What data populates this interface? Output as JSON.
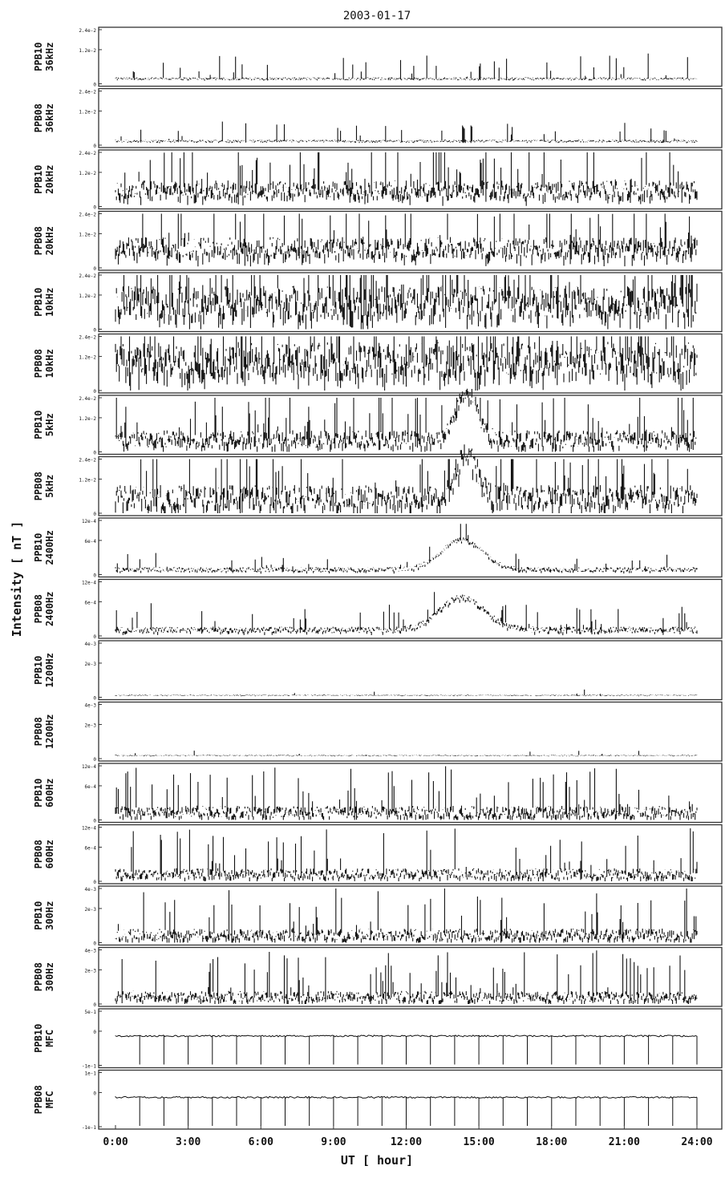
{
  "chart_data": {
    "type": "line",
    "title": "2003-01-17",
    "xlabel": "UT [ hour]",
    "ylabel": "Intensity [ nT ]",
    "x_ticks": [
      "0:00",
      "3:00",
      "6:00",
      "9:00",
      "12:00",
      "15:00",
      "18:00",
      "21:00",
      "24:00"
    ],
    "xlim": [
      0,
      24
    ],
    "grid": false,
    "panels": [
      {
        "station": "PPB10",
        "band": "36kHz",
        "ticks": [
          "2.4e-2",
          "1.2e-2",
          "0"
        ],
        "ylim": [
          0,
          0.024
        ],
        "base": 0.08,
        "noise": 0.04,
        "spike": 0.45,
        "density": 0.06
      },
      {
        "station": "PPB08",
        "band": "36kHz",
        "ticks": [
          "2.4e-2",
          "1.2e-2",
          "0"
        ],
        "ylim": [
          0,
          0.024
        ],
        "base": 0.06,
        "noise": 0.04,
        "spike": 0.35,
        "density": 0.06
      },
      {
        "station": "PPB10",
        "band": "20kHz",
        "ticks": [
          "2.4e-2",
          "1.2e-2",
          "0"
        ],
        "ylim": [
          0,
          0.024
        ],
        "base": 0.18,
        "noise": 0.3,
        "spike": 0.95,
        "density": 0.1
      },
      {
        "station": "PPB08",
        "band": "20kHz",
        "ticks": [
          "2.4e-2",
          "1.2e-2",
          "0"
        ],
        "ylim": [
          0,
          0.024
        ],
        "base": 0.22,
        "noise": 0.35,
        "spike": 0.95,
        "density": 0.12
      },
      {
        "station": "PPB10",
        "band": "10kHz",
        "ticks": [
          "2.4e-2",
          "1.2e-2",
          "0"
        ],
        "ylim": [
          0,
          0.024
        ],
        "base": 0.25,
        "noise": 0.55,
        "spike": 1.0,
        "density": 0.18
      },
      {
        "station": "PPB08",
        "band": "10kHz",
        "ticks": [
          "2.4e-2",
          "1.2e-2",
          "0"
        ],
        "ylim": [
          0,
          0.024
        ],
        "base": 0.3,
        "noise": 0.6,
        "spike": 1.0,
        "density": 0.2
      },
      {
        "station": "PPB10",
        "band": "5kHz",
        "ticks": [
          "2.4e-2",
          "1.2e-2",
          "0"
        ],
        "ylim": [
          0,
          0.024
        ],
        "base": 0.1,
        "noise": 0.3,
        "spike": 0.9,
        "density": 0.12,
        "bump": {
          "center": 14.5,
          "width": 0.6,
          "height": 0.9
        }
      },
      {
        "station": "PPB08",
        "band": "5kHz",
        "ticks": [
          "2.4e-2",
          "1.2e-2",
          "0"
        ],
        "ylim": [
          0,
          0.024
        ],
        "base": 0.12,
        "noise": 0.4,
        "spike": 0.95,
        "density": 0.14,
        "bump": {
          "center": 14.5,
          "width": 0.6,
          "height": 0.8
        }
      },
      {
        "station": "PPB10",
        "band": "2400Hz",
        "ticks": [
          "12e-4",
          "6e-4",
          "0"
        ],
        "ylim": [
          0,
          0.0012
        ],
        "base": 0.06,
        "noise": 0.08,
        "spike": 0.3,
        "density": 0.05,
        "bump": {
          "center": 14.3,
          "width": 1.2,
          "height": 0.55
        }
      },
      {
        "station": "PPB08",
        "band": "2400Hz",
        "ticks": [
          "12e-4",
          "6e-4",
          "0"
        ],
        "ylim": [
          0,
          0.0012
        ],
        "base": 0.07,
        "noise": 0.1,
        "spike": 0.45,
        "density": 0.06,
        "bump": {
          "center": 14.3,
          "width": 1.3,
          "height": 0.6
        }
      },
      {
        "station": "PPB10",
        "band": "1200Hz",
        "ticks": [
          "4e-3",
          "2e-3",
          "0"
        ],
        "ylim": [
          0,
          0.004
        ],
        "base": 0.03,
        "noise": 0.02,
        "spike": 0.1,
        "density": 0.01
      },
      {
        "station": "PPB08",
        "band": "1200Hz",
        "ticks": [
          "4e-3",
          "2e-3",
          "0"
        ],
        "ylim": [
          0,
          0.004
        ],
        "base": 0.05,
        "noise": 0.02,
        "spike": 0.1,
        "density": 0.01
      },
      {
        "station": "PPB10",
        "band": "600Hz",
        "ticks": [
          "12e-4",
          "6e-4",
          "0"
        ],
        "ylim": [
          0,
          0.0012
        ],
        "base": 0.06,
        "noise": 0.2,
        "spike": 0.85,
        "density": 0.1
      },
      {
        "station": "PPB08",
        "band": "600Hz",
        "ticks": [
          "12e-4",
          "6e-4",
          "0"
        ],
        "ylim": [
          0,
          0.0012
        ],
        "base": 0.06,
        "noise": 0.18,
        "spike": 0.85,
        "density": 0.09
      },
      {
        "station": "PPB10",
        "band": "300Hz",
        "ticks": [
          "4e-3",
          "2e-3",
          "0"
        ],
        "ylim": [
          0,
          0.004
        ],
        "base": 0.06,
        "noise": 0.2,
        "spike": 0.9,
        "density": 0.1
      },
      {
        "station": "PPB08",
        "band": "300Hz",
        "ticks": [
          "4e-3",
          "2e-3",
          "0"
        ],
        "ylim": [
          0,
          0.004
        ],
        "base": 0.06,
        "noise": 0.18,
        "spike": 0.85,
        "density": 0.1
      },
      {
        "station": "PPB10",
        "band": "MFC",
        "ticks": [
          "5e-1",
          "0",
          "-1e-1"
        ],
        "ylim": [
          -0.1,
          0.5
        ],
        "mfc": true
      },
      {
        "station": "PPB08",
        "band": "MFC",
        "ticks": [
          "1e-1",
          "0",
          "-1e-1"
        ],
        "ylim": [
          -0.1,
          0.1
        ],
        "mfc": true
      }
    ]
  }
}
